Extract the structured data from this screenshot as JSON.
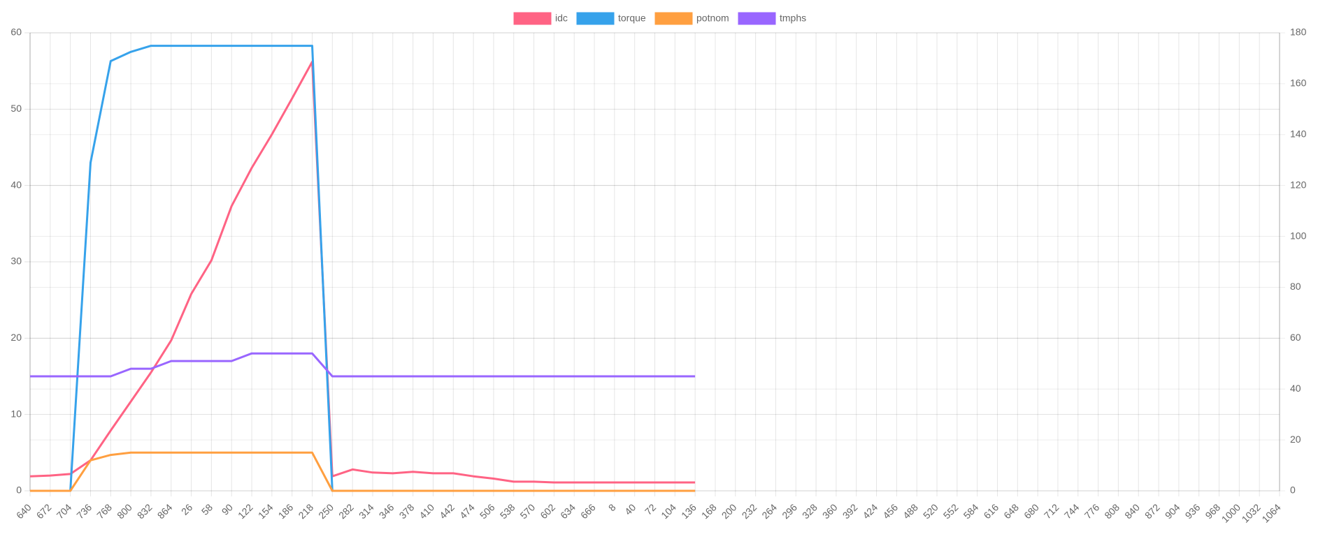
{
  "chart_data": {
    "type": "line",
    "categories": [
      "640",
      "672",
      "704",
      "736",
      "768",
      "800",
      "832",
      "864",
      "26",
      "58",
      "90",
      "122",
      "154",
      "186",
      "218",
      "250",
      "282",
      "314",
      "346",
      "378",
      "410",
      "442",
      "474",
      "506",
      "538",
      "570",
      "602",
      "634",
      "666",
      "8",
      "40",
      "72",
      "104",
      "136",
      "168",
      "200",
      "232",
      "264",
      "296",
      "328",
      "360",
      "392",
      "424",
      "456",
      "488",
      "520",
      "552",
      "584",
      "616",
      "648",
      "680",
      "712",
      "744",
      "776",
      "808",
      "840",
      "872",
      "904",
      "936",
      "968",
      "1000",
      "1032",
      "1064"
    ],
    "series": [
      {
        "name": "idc",
        "color": "#ff6384",
        "values": [
          1.9,
          2.0,
          2.2,
          4.0,
          7.9,
          11.7,
          15.5,
          19.7,
          25.8,
          30.2,
          37.3,
          42.3,
          46.7,
          51.4,
          56.2,
          1.9,
          2.8,
          2.4,
          2.3,
          2.5,
          2.3,
          2.3,
          1.9,
          1.6,
          1.2,
          1.2,
          1.1,
          1.1,
          1.1,
          1.1,
          1.1,
          1.1,
          1.1,
          1.1,
          null,
          null,
          null,
          null,
          null,
          null,
          null,
          null,
          null,
          null,
          null,
          null,
          null,
          null,
          null,
          null,
          null,
          null,
          null,
          null,
          null,
          null,
          null,
          null,
          null,
          null,
          null,
          null,
          null
        ]
      },
      {
        "name": "torque",
        "color": "#36a2eb",
        "values": [
          0,
          0,
          0,
          43,
          56.3,
          57.5,
          58.3,
          58.3,
          58.3,
          58.3,
          58.3,
          58.3,
          58.3,
          58.3,
          58.3,
          0,
          0,
          0,
          0,
          0,
          0,
          0,
          0,
          0,
          0,
          0,
          0,
          0,
          0,
          0,
          0,
          0,
          0,
          0,
          null,
          null,
          null,
          null,
          null,
          null,
          null,
          null,
          null,
          null,
          null,
          null,
          null,
          null,
          null,
          null,
          null,
          null,
          null,
          null,
          null,
          null,
          null,
          null,
          null,
          null,
          null,
          null,
          null
        ]
      },
      {
        "name": "potnom",
        "color": "#ff9f40",
        "values": [
          0,
          0,
          0,
          4,
          4.7,
          5,
          5,
          5,
          5,
          5,
          5,
          5,
          5,
          5,
          5,
          0,
          0,
          0,
          0,
          0,
          0,
          0,
          0,
          0,
          0,
          0,
          0,
          0,
          0,
          0,
          0,
          0,
          0,
          0,
          null,
          null,
          null,
          null,
          null,
          null,
          null,
          null,
          null,
          null,
          null,
          null,
          null,
          null,
          null,
          null,
          null,
          null,
          null,
          null,
          null,
          null,
          null,
          null,
          null,
          null,
          null,
          null,
          null
        ]
      },
      {
        "name": "tmphs",
        "color": "#9966ff",
        "axis": "y2",
        "values": [
          45,
          45,
          45,
          45,
          45,
          48,
          48,
          51,
          51,
          51,
          51,
          54,
          54,
          54,
          54,
          45,
          45,
          45,
          45,
          45,
          45,
          45,
          45,
          45,
          45,
          45,
          45,
          45,
          45,
          45,
          45,
          45,
          45,
          45,
          null,
          null,
          null,
          null,
          null,
          null,
          null,
          null,
          null,
          null,
          null,
          null,
          null,
          null,
          null,
          null,
          null,
          null,
          null,
          null,
          null,
          null,
          null,
          null,
          null,
          null,
          null,
          null,
          null
        ]
      }
    ],
    "ylim": [
      0,
      60
    ],
    "yticks": [
      0,
      10,
      20,
      30,
      40,
      50,
      60
    ],
    "y2lim": [
      0,
      180
    ],
    "y2ticks": [
      0,
      20,
      40,
      60,
      80,
      100,
      120,
      140,
      160,
      180
    ],
    "grid": true,
    "legend": "top"
  }
}
